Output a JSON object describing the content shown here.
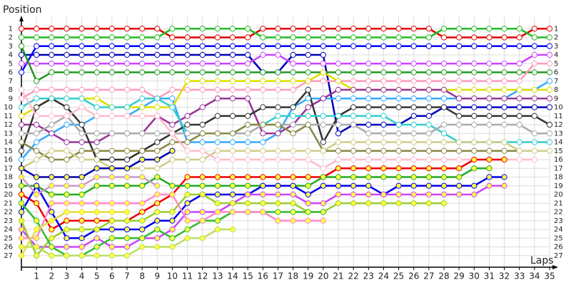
{
  "chart_data": {
    "type": "line",
    "y_label": "Position",
    "x_label": "Laps",
    "x": [
      0,
      1,
      2,
      3,
      4,
      5,
      6,
      7,
      8,
      9,
      10,
      11,
      12,
      13,
      14,
      15,
      16,
      17,
      18,
      19,
      20,
      21,
      22,
      23,
      24,
      25,
      26,
      27,
      28,
      29,
      30,
      31,
      32,
      33,
      34,
      35
    ],
    "xlim": [
      0,
      35
    ],
    "xticks": [
      1,
      2,
      3,
      4,
      5,
      6,
      7,
      8,
      9,
      10,
      11,
      12,
      13,
      14,
      15,
      16,
      17,
      18,
      19,
      20,
      21,
      22,
      23,
      24,
      25,
      26,
      27,
      28,
      29,
      30,
      31,
      32,
      33,
      34,
      35
    ],
    "ylim": [
      28,
      0
    ],
    "yticks": [
      1,
      2,
      3,
      4,
      5,
      6,
      7,
      8,
      9,
      10,
      11,
      12,
      13,
      14,
      15,
      16,
      17,
      18,
      19,
      20,
      21,
      22,
      23,
      24,
      25,
      26,
      27
    ],
    "grid": true,
    "series": [
      {
        "color": "#e00000",
        "marker": "#ffffff",
        "values": [
          1,
          1,
          1,
          1,
          1,
          1,
          1,
          1,
          1,
          1,
          2,
          2,
          2,
          2,
          2,
          2,
          1,
          1,
          1,
          1,
          1,
          1,
          1,
          1,
          1,
          1,
          1,
          1,
          2,
          2,
          2,
          2,
          2,
          2,
          1,
          1
        ]
      },
      {
        "color": "#22bb22",
        "marker": "#ffffff",
        "values": [
          2,
          2,
          2,
          2,
          2,
          2,
          2,
          2,
          2,
          2,
          1,
          1,
          1,
          1,
          1,
          1,
          2,
          2,
          2,
          2,
          2,
          2,
          2,
          2,
          2,
          2,
          2,
          2,
          1,
          1,
          1,
          1,
          1,
          1,
          2,
          2
        ]
      },
      {
        "color": "#0000ff",
        "marker": "#ffffff",
        "values": [
          6,
          3,
          3,
          3,
          3,
          3,
          3,
          3,
          3,
          3,
          3,
          3,
          3,
          3,
          3,
          3,
          3,
          3,
          3,
          3,
          3,
          3,
          3,
          3,
          3,
          3,
          3,
          3,
          3,
          3,
          3,
          3,
          3,
          3,
          3,
          3
        ]
      },
      {
        "color": "#0000bb",
        "marker": "#ffffff",
        "values": [
          4,
          4,
          4,
          4,
          4,
          4,
          4,
          4,
          4,
          4,
          4,
          4,
          4,
          4,
          4,
          4,
          6,
          6,
          4,
          4,
          4,
          13,
          12,
          12,
          12,
          12,
          11,
          11,
          10,
          10,
          10,
          10,
          10,
          10,
          10,
          10
        ]
      },
      {
        "color": "#cc44ff",
        "marker": "#ffffff",
        "values": [
          5,
          5,
          5,
          5,
          5,
          5,
          5,
          5,
          5,
          5,
          5,
          5,
          5,
          5,
          5,
          5,
          4,
          4,
          5,
          5,
          5,
          5,
          5,
          5,
          5,
          5,
          5,
          5,
          5,
          5,
          5,
          5,
          5,
          5,
          4,
          4
        ]
      },
      {
        "color": "#229922",
        "marker": "#ffffff",
        "values": [
          3,
          7,
          6,
          6,
          6,
          6,
          6,
          6,
          6,
          6,
          6,
          6,
          6,
          6,
          6,
          6,
          6,
          6,
          6,
          6,
          6,
          6,
          6,
          6,
          6,
          6,
          6,
          6,
          6,
          6,
          6,
          6,
          6,
          6,
          6,
          6
        ]
      },
      {
        "color": "#ff99bb",
        "marker": "#ffffff",
        "values": [
          9,
          8,
          8,
          8,
          8,
          8,
          8,
          8,
          8,
          9,
          8,
          8,
          8,
          8,
          8,
          8,
          8,
          8,
          8,
          7,
          7,
          7,
          7,
          7,
          7,
          7,
          7,
          7,
          7,
          7,
          7,
          7,
          7,
          7,
          5,
          5
        ]
      },
      {
        "color": "#33aaff",
        "marker": "#ffffff",
        "values": [
          16,
          14,
          13,
          12,
          12,
          11,
          11,
          11,
          10,
          9,
          9,
          14,
          14,
          14,
          14,
          14,
          14,
          13,
          10,
          9,
          9,
          9,
          9,
          9,
          9,
          9,
          9,
          9,
          9,
          9,
          9,
          9,
          9,
          8,
          8,
          7
        ]
      },
      {
        "color": "#dddd00",
        "marker": "#ffffff",
        "values": [
          11,
          10,
          9,
          9,
          9,
          9,
          10,
          10,
          10,
          10,
          10,
          7,
          7,
          7,
          7,
          7,
          7,
          7,
          7,
          7,
          6,
          7,
          8,
          8,
          8,
          8,
          8,
          8,
          8,
          8,
          8,
          8,
          8,
          8,
          8,
          8
        ]
      },
      {
        "color": "#993399",
        "marker": "#ffffff",
        "values": [
          12,
          12,
          13,
          14,
          14,
          14,
          13,
          13,
          13,
          11,
          12,
          11,
          10,
          9,
          9,
          9,
          13,
          13,
          12,
          10,
          9,
          8,
          8,
          8,
          8,
          8,
          8,
          8,
          8,
          9,
          9,
          9,
          9,
          9,
          9,
          9
        ]
      },
      {
        "color": "#333333",
        "marker": "#ffffff",
        "values": [
          15,
          10,
          9,
          10,
          12,
          16,
          16,
          16,
          15,
          14,
          13,
          12,
          12,
          11,
          11,
          11,
          10,
          10,
          10,
          8,
          14,
          11,
          10,
          10,
          10,
          10,
          10,
          10,
          10,
          11,
          11,
          11,
          11,
          11,
          11,
          12
        ]
      },
      {
        "color": "#33cccc",
        "marker": "#ffffff",
        "values": [
          10,
          9,
          9,
          9,
          9,
          10,
          10,
          10,
          9,
          9,
          10,
          13,
          13,
          13,
          13,
          12,
          12,
          11,
          11,
          11,
          11,
          11,
          11,
          11,
          11,
          12,
          12,
          12,
          13,
          14,
          14,
          14,
          14,
          14,
          14,
          14
        ]
      },
      {
        "color": "#aaaaaa",
        "marker": "#ffffff",
        "values": [
          13,
          13,
          12,
          11,
          13,
          13,
          13,
          13,
          13,
          13,
          13,
          13,
          13,
          13,
          13,
          13,
          12,
          12,
          12,
          12,
          12,
          12,
          12,
          13,
          13,
          13,
          13,
          13,
          12,
          12,
          12,
          12,
          12,
          12,
          13,
          13
        ]
      },
      {
        "color": "#888844",
        "marker": "#ffffff",
        "values": [
          14,
          15,
          16,
          16,
          15,
          15,
          15,
          15,
          15,
          15,
          14,
          14,
          13,
          13,
          13,
          12,
          12,
          12,
          13,
          12,
          15,
          15,
          15,
          15,
          15,
          15,
          15,
          15,
          15,
          15,
          15,
          15,
          15,
          15,
          null,
          null
        ]
      },
      {
        "color": "#cccc88",
        "marker": "#ffffff",
        "values": [
          17,
          16,
          15,
          15,
          16,
          16,
          17,
          17,
          17,
          17,
          16,
          16,
          16,
          15,
          15,
          15,
          15,
          15,
          15,
          15,
          15,
          14,
          14,
          14,
          14,
          14,
          14,
          14,
          14,
          14,
          14,
          14,
          14,
          15,
          15,
          15
        ]
      },
      {
        "color": "#ffbbcc",
        "marker": "#ffffff",
        "values": [
          8,
          11,
          11,
          11,
          10,
          11,
          11,
          11,
          11,
          11,
          13,
          15,
          15,
          16,
          16,
          16,
          16,
          16,
          16,
          16,
          17,
          16,
          16,
          16,
          16,
          16,
          16,
          16,
          16,
          16,
          16,
          16,
          16,
          16,
          16,
          null
        ]
      },
      {
        "color": "#ee0000",
        "marker": "#ffff44",
        "values": [
          20,
          21,
          24,
          23,
          23,
          23,
          23,
          23,
          22,
          21,
          20,
          18,
          18,
          18,
          18,
          18,
          18,
          18,
          18,
          18,
          18,
          17,
          17,
          17,
          17,
          17,
          17,
          17,
          17,
          17,
          16,
          16,
          16,
          null,
          null,
          null
        ]
      },
      {
        "color": "#22aa22",
        "marker": "#ffff44",
        "values": [
          19,
          19,
          20,
          20,
          20,
          19,
          19,
          19,
          19,
          18,
          19,
          19,
          19,
          19,
          19,
          19,
          19,
          19,
          19,
          19,
          18,
          18,
          18,
          18,
          18,
          18,
          18,
          18,
          18,
          18,
          17,
          17,
          null,
          null,
          null,
          null
        ]
      },
      {
        "color": "#0000ee",
        "marker": "#ffff44",
        "values": [
          22,
          19,
          22,
          25,
          25,
          24,
          24,
          24,
          24,
          23,
          23,
          21,
          20,
          20,
          20,
          20,
          19,
          19,
          19,
          20,
          19,
          19,
          19,
          19,
          20,
          19,
          19,
          19,
          19,
          19,
          19,
          18,
          18,
          null,
          null,
          null
        ]
      },
      {
        "color": "#cc44ff",
        "marker": "#ffff44",
        "values": [
          24,
          26,
          26,
          26,
          26,
          25,
          26,
          26,
          25,
          25,
          24,
          22,
          22,
          22,
          21,
          20,
          20,
          20,
          20,
          21,
          21,
          20,
          20,
          20,
          20,
          20,
          20,
          20,
          20,
          20,
          20,
          19,
          19,
          null,
          null,
          null
        ]
      },
      {
        "color": "#99cc33",
        "marker": "#ffff44",
        "values": [
          23,
          27,
          25,
          24,
          24,
          24,
          23,
          23,
          23,
          22,
          22,
          20,
          20,
          21,
          21,
          21,
          21,
          21,
          21,
          22,
          22,
          21,
          21,
          21,
          21,
          21,
          21,
          21,
          21,
          null,
          null,
          null,
          null,
          null,
          null,
          null
        ]
      },
      {
        "color": "#33bb33",
        "marker": "#ffff44",
        "values": [
          21,
          23,
          26,
          27,
          27,
          26,
          25,
          25,
          25,
          24,
          25,
          24,
          23,
          23,
          22,
          22,
          22,
          22,
          22,
          22,
          22,
          null,
          null,
          null,
          null,
          null,
          null,
          null,
          null,
          null,
          null,
          null,
          null,
          null,
          null,
          null
        ]
      },
      {
        "color": "#ff88cc",
        "marker": "#ffff44",
        "values": [
          25,
          25,
          21,
          21,
          21,
          21,
          21,
          21,
          21,
          20,
          20,
          23,
          23,
          22,
          22,
          22,
          22,
          23,
          23,
          23,
          23,
          null,
          null,
          null,
          null,
          null,
          null,
          null,
          null,
          null,
          null,
          null,
          null,
          null,
          null,
          null
        ]
      },
      {
        "color": "#bbdd66",
        "marker": "#ffff44",
        "values": [
          26,
          26,
          27,
          27,
          27,
          27,
          27,
          27,
          26,
          26,
          26,
          25,
          25,
          24,
          24,
          null,
          null,
          null,
          null,
          null,
          null,
          null,
          null,
          null,
          null,
          null,
          null,
          null,
          null,
          null,
          null,
          null,
          null,
          null,
          null,
          null
        ]
      },
      {
        "color": "#dddd44",
        "marker": "#ffff44",
        "values": [
          27,
          24,
          23,
          22,
          22,
          22,
          22,
          22,
          null,
          null,
          null,
          null,
          null,
          null,
          null,
          null,
          null,
          null,
          null,
          null,
          null,
          null,
          null,
          null,
          null,
          null,
          null,
          null,
          null,
          null,
          null,
          null,
          null,
          null,
          null,
          null
        ]
      },
      {
        "color": "#cc99cc",
        "marker": "#ffff44",
        "values": [
          18,
          20,
          19,
          19,
          19,
          18,
          18,
          18,
          18,
          19,
          null,
          null,
          null,
          null,
          null,
          null,
          null,
          null,
          null,
          null,
          null,
          null,
          null,
          null,
          null,
          null,
          null,
          null,
          null,
          null,
          null,
          null,
          null,
          null,
          null,
          null
        ]
      },
      {
        "color": "#0000aa",
        "marker": "#ffff44",
        "values": [
          17,
          18,
          18,
          18,
          18,
          17,
          17,
          17,
          16,
          16,
          15,
          null,
          null,
          null,
          null,
          null,
          null,
          null,
          null,
          null,
          null,
          null,
          null,
          null,
          null,
          null,
          null,
          null,
          null,
          null,
          null,
          null,
          null,
          null,
          null,
          null
        ]
      }
    ]
  }
}
